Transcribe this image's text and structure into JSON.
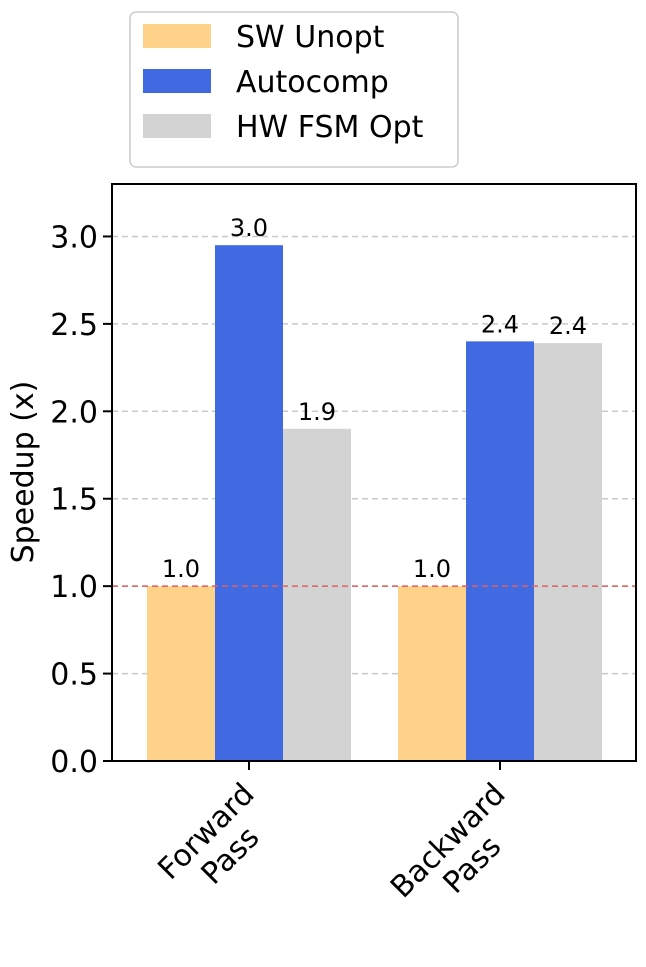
{
  "chart_data": {
    "type": "bar",
    "categories": [
      "Forward Pass",
      "Backward Pass"
    ],
    "category_tick_labels": [
      [
        "Forward",
        "Pass"
      ],
      [
        "Backward",
        "Pass"
      ]
    ],
    "series": [
      {
        "name": "SW Unopt",
        "color": "#FFD28A",
        "values": [
          1.0,
          1.0
        ],
        "labels": [
          "1.0",
          "1.0"
        ]
      },
      {
        "name": "Autocomp",
        "color": "#4169E1",
        "values": [
          2.95,
          2.4
        ],
        "labels": [
          "3.0",
          "2.4"
        ]
      },
      {
        "name": "HW FSM Opt",
        "color": "#D3D3D3",
        "values": [
          1.9,
          2.39
        ],
        "labels": [
          "1.9",
          "2.4"
        ]
      }
    ],
    "ylabel": "Speedup (x)",
    "ylim": [
      0,
      3.3
    ],
    "yticks": [
      "0.0",
      "0.5",
      "1.0",
      "1.5",
      "2.0",
      "2.5",
      "3.0"
    ],
    "reference_line": {
      "value": 1.0,
      "color": "#E06060",
      "style": "dashed"
    },
    "grid": "y, dashed",
    "legend_position": "top (above plot)"
  }
}
